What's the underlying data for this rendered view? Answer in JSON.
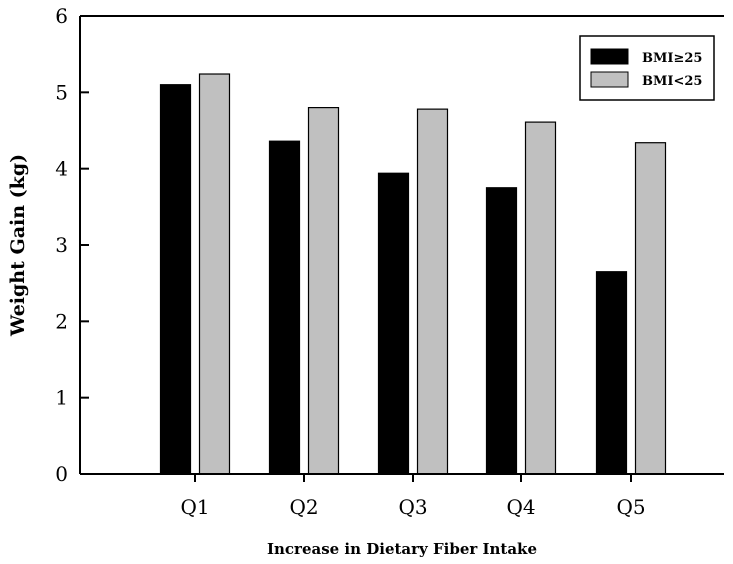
{
  "chart_data": {
    "type": "bar",
    "title": "",
    "xlabel": "Increase in Dietary Fiber Intake",
    "ylabel": "Weight Gain (kg)",
    "categories": [
      "Q1",
      "Q2",
      "Q3",
      "Q4",
      "Q5"
    ],
    "ylim": [
      0,
      6
    ],
    "yticks": [
      "0",
      "1",
      "2",
      "3",
      "4",
      "5",
      "6"
    ],
    "grid": false,
    "legend_position": "top-right",
    "series": [
      {
        "name": "BMI≥25",
        "color": "#000000",
        "values": [
          5.1,
          4.36,
          3.94,
          3.75,
          2.65
        ]
      },
      {
        "name": "BMI<25",
        "color": "#c0c0c0",
        "values": [
          5.24,
          4.8,
          4.78,
          4.61,
          4.34
        ]
      }
    ]
  }
}
